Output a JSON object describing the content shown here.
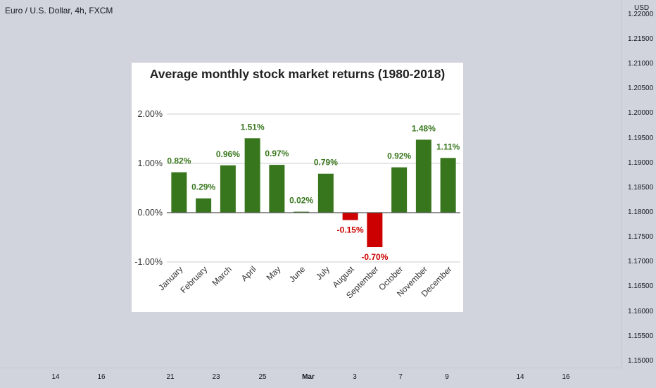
{
  "symbol_title": "Euro / U.S. Dollar, 4h, FXCM",
  "price_axis": {
    "currency": "USD",
    "labels": [
      "1.22000",
      "1.21500",
      "1.21000",
      "1.20500",
      "1.20000",
      "1.19500",
      "1.19000",
      "1.18500",
      "1.18000",
      "1.17500",
      "1.17000",
      "1.16500",
      "1.16000",
      "1.15500",
      "1.15000"
    ]
  },
  "time_axis": {
    "labels": [
      "14",
      "16",
      "21",
      "23",
      "25",
      "Mar",
      "3",
      "7",
      "9",
      "14",
      "16"
    ]
  },
  "colors": {
    "positive": "#38761d",
    "negative": "#cc0000",
    "background": "#d1d4dc"
  },
  "chart_data": {
    "type": "bar",
    "title": "Average monthly stock market returns (1980-2018)",
    "categories": [
      "January",
      "February",
      "March",
      "April",
      "May",
      "June",
      "July",
      "August",
      "September",
      "October",
      "November",
      "December"
    ],
    "values": [
      0.82,
      0.29,
      0.96,
      1.51,
      0.97,
      0.02,
      0.79,
      -0.15,
      -0.7,
      0.92,
      1.48,
      1.11
    ],
    "value_labels": [
      "0.82%",
      "0.29%",
      "0.96%",
      "1.51%",
      "0.97%",
      "0.02%",
      "0.79%",
      "-0.15%",
      "-0.70%",
      "0.92%",
      "1.48%",
      "1.11%"
    ],
    "y_ticks": [
      2.0,
      1.0,
      0.0,
      -1.0
    ],
    "y_tick_labels": [
      "2.00%",
      "1.00%",
      "0.00%",
      "-1.00%"
    ],
    "ylim": [
      -1.0,
      2.0
    ],
    "grid": true,
    "legend": "none"
  }
}
